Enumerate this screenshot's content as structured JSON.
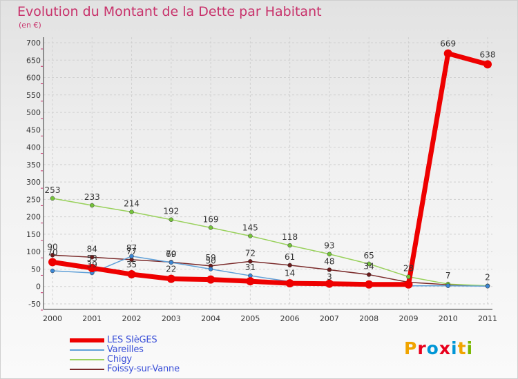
{
  "chart_data": {
    "type": "line",
    "title": "Evolution du Montant de la Dette par Habitant",
    "subtitle": "(en €)",
    "xlabel": "",
    "ylabel": "",
    "ylim": [
      -50,
      700
    ],
    "yticks": [
      -50,
      0,
      50,
      100,
      150,
      200,
      250,
      300,
      350,
      400,
      450,
      500,
      550,
      600,
      650,
      700
    ],
    "categories": [
      "2000",
      "2001",
      "2002",
      "2003",
      "2004",
      "2005",
      "2006",
      "2007",
      "2008",
      "2009",
      "2010",
      "2011"
    ],
    "grid": true,
    "legend": "bottom-left",
    "series": [
      {
        "name": "LES SIèGES",
        "color": "#ee0000",
        "marker": "#ee0000",
        "width": 7,
        "r": 6,
        "values": [
          70,
          53,
          35,
          22,
          20,
          15,
          9,
          8,
          6,
          6,
          669,
          638
        ],
        "labels": [
          "70",
          "53",
          "35",
          "22",
          "",
          "",
          "",
          "",
          "",
          "",
          "669",
          "638"
        ]
      },
      {
        "name": "Vareilles",
        "color": "#5fa0d8",
        "marker": "#3a86d4",
        "width": 1.5,
        "r": 3,
        "values": [
          45,
          39,
          87,
          69,
          50,
          31,
          14,
          3,
          3,
          2,
          2,
          1
        ],
        "labels": [
          "",
          "39",
          "87",
          "69",
          "50",
          "31",
          "14",
          "3",
          "",
          "",
          "",
          ""
        ]
      },
      {
        "name": "Chigy",
        "color": "#99d15c",
        "marker": "#74c23a",
        "width": 1.5,
        "r": 3,
        "values": [
          253,
          233,
          214,
          192,
          169,
          145,
          118,
          93,
          65,
          28,
          7,
          2
        ],
        "labels": [
          "253",
          "233",
          "214",
          "192",
          "169",
          "145",
          "118",
          "93",
          "65",
          "28",
          "7",
          "2"
        ]
      },
      {
        "name": "Foissy-sur-Vanne",
        "color": "#7a2a2a",
        "marker": "#6b1b1b",
        "width": 1.5,
        "r": 3,
        "values": [
          90,
          84,
          77,
          70,
          59,
          72,
          61,
          48,
          34,
          12,
          5,
          1
        ],
        "labels": [
          "90",
          "84",
          "77",
          "70",
          "59",
          "72",
          "61",
          "48",
          "34",
          "",
          "",
          ""
        ]
      }
    ]
  },
  "logo": {
    "text": "Proxiti",
    "colors": [
      "#f0a400",
      "#e8001c",
      "#0096d6",
      "#e8001c",
      "#0096d6",
      "#f0a400",
      "#7ab800"
    ]
  }
}
